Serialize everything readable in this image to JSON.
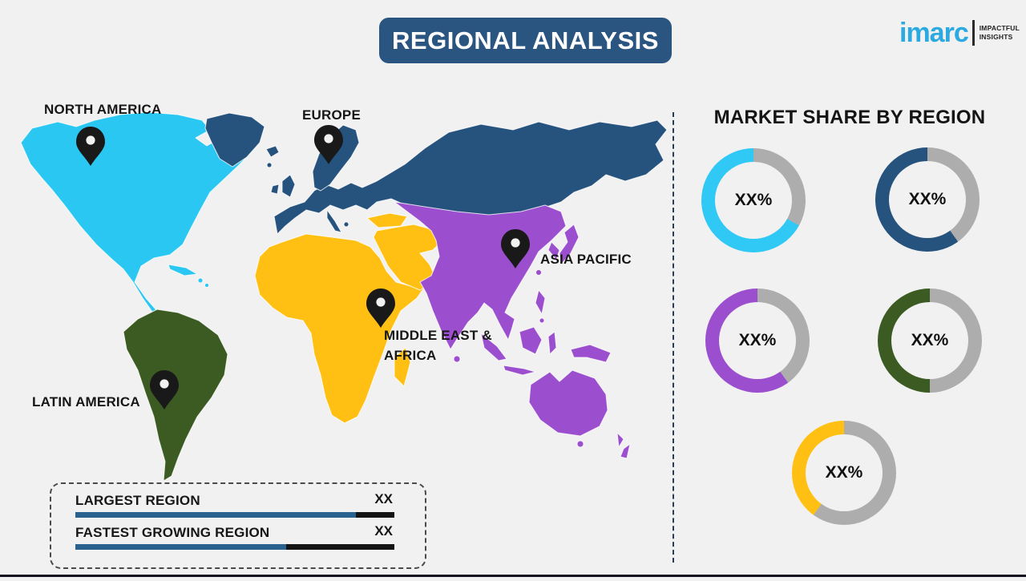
{
  "header": {
    "title": "REGIONAL ANALYSIS",
    "bar_color": "#2A5581"
  },
  "logo": {
    "brand": "imarc",
    "brand_color": "#2BA9E0",
    "tagline_line1": "IMPACTFUL",
    "tagline_line2": "INSIGHTS"
  },
  "map": {
    "regions": [
      {
        "id": "north-america",
        "label": "NORTH AMERICA",
        "color": "#2BC7F3"
      },
      {
        "id": "europe",
        "label": "EUROPE",
        "color": "#26527E"
      },
      {
        "id": "asia-pacific",
        "label": "ASIA PACIFIC",
        "color": "#9B4FCE"
      },
      {
        "id": "middle-east-africa",
        "label": "MIDDLE EAST & AFRICA",
        "label_line1": "MIDDLE EAST &",
        "label_line2": "AFRICA",
        "color": "#FFC013"
      },
      {
        "id": "latin-america",
        "label": "LATIN AMERICA",
        "color": "#3C5B23"
      }
    ]
  },
  "market_share": {
    "title": "MARKET SHARE BY REGION",
    "track_color": "#ADADAD",
    "donuts": [
      {
        "region": "north-america",
        "value_label": "XX%",
        "color": "#30C9F5",
        "fill_pct": 67
      },
      {
        "region": "europe",
        "value_label": "XX%",
        "color": "#26527E",
        "fill_pct": 60
      },
      {
        "region": "asia-pacific",
        "value_label": "XX%",
        "color": "#9B4FCE",
        "fill_pct": 60
      },
      {
        "region": "latin-america",
        "value_label": "XX%",
        "color": "#3C5B23",
        "fill_pct": 50
      },
      {
        "region": "middle-east-africa",
        "value_label": "XX%",
        "color": "#FFC013",
        "fill_pct": 40
      }
    ]
  },
  "legend": {
    "bar_color": "#2A628F",
    "bar_rest_color": "#141414",
    "rows": [
      {
        "label": "LARGEST REGION",
        "value": "XX",
        "bar_fill_pct": 88
      },
      {
        "label": "FASTEST GROWING REGION",
        "value": "XX",
        "bar_fill_pct": 66
      }
    ]
  },
  "chart_data": [
    {
      "type": "pie",
      "title": "MARKET SHARE BY REGION",
      "series": [
        {
          "name": "North America",
          "value_label": "XX%",
          "shown_fraction": 0.67
        },
        {
          "name": "Europe",
          "value_label": "XX%",
          "shown_fraction": 0.6
        },
        {
          "name": "Asia Pacific",
          "value_label": "XX%",
          "shown_fraction": 0.6
        },
        {
          "name": "Latin America",
          "value_label": "XX%",
          "shown_fraction": 0.5
        },
        {
          "name": "Middle East & Africa",
          "value_label": "XX%",
          "shown_fraction": 0.4
        }
      ],
      "note": "Five placeholder donut gauges; remainder of each ring is gray track."
    },
    {
      "type": "bar",
      "categories": [
        "LARGEST REGION",
        "FASTEST GROWING REGION"
      ],
      "values": [
        "XX",
        "XX"
      ],
      "shown_fractions": [
        0.88,
        0.66
      ],
      "title": "",
      "xlabel": "",
      "ylabel": ""
    }
  ]
}
